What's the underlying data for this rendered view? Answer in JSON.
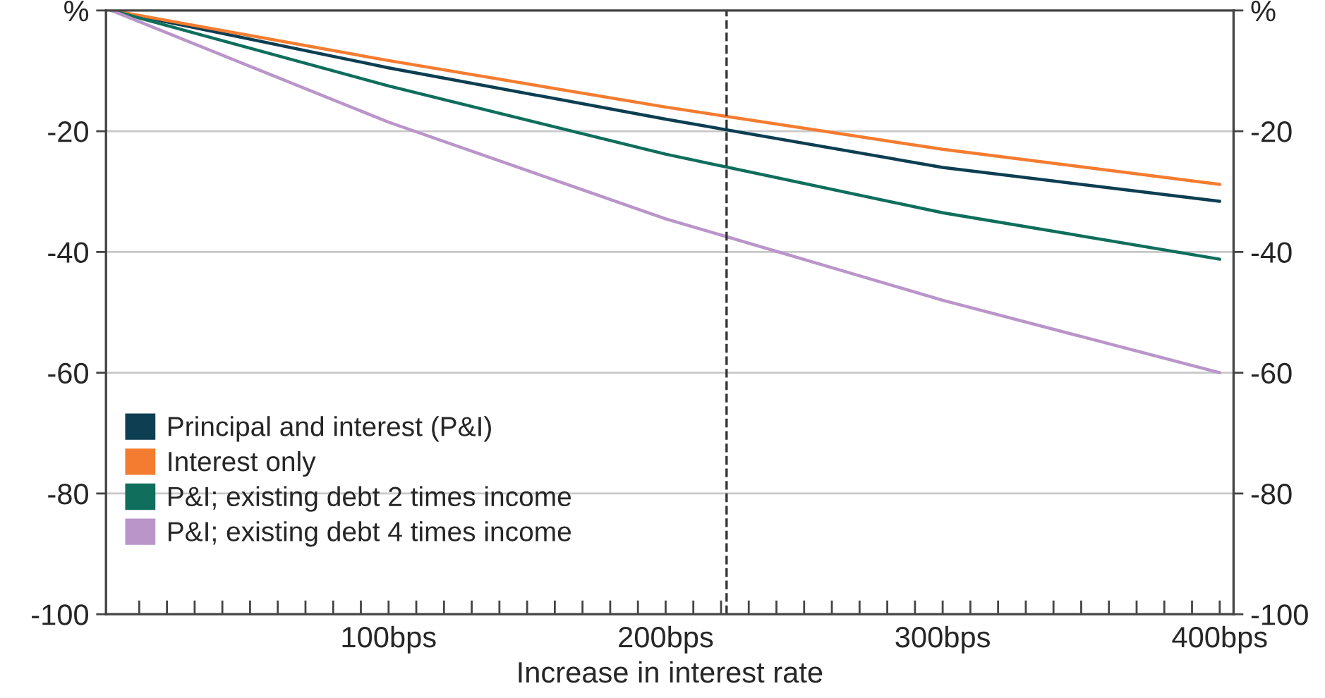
{
  "chart_data": {
    "type": "line",
    "xlabel": "Increase in interest rate",
    "x": [
      0,
      100,
      200,
      300,
      400
    ],
    "series": [
      {
        "name": "Principal and interest (P&I)",
        "color": "#0d3e52",
        "values": [
          0,
          -9.5,
          -18,
          -26,
          -31.6
        ]
      },
      {
        "name": "Interest only",
        "color": "#f47c30",
        "values": [
          0,
          -8.3,
          -16,
          -23,
          -28.8
        ]
      },
      {
        "name": "P&I; existing debt 2 times income",
        "color": "#0f6e5c",
        "values": [
          0,
          -12.5,
          -23.8,
          -33.5,
          -41.2
        ]
      },
      {
        "name": "P&I; existing debt 4 times income",
        "color": "#b995c9",
        "values": [
          0,
          -18.5,
          -34.5,
          -48,
          -60
        ]
      }
    ],
    "xlim": [
      -2,
      405
    ],
    "xticks": [
      {
        "value": 10,
        "label": null
      },
      {
        "value": 20,
        "label": null
      },
      {
        "value": 30,
        "label": null
      },
      {
        "value": 40,
        "label": null
      },
      {
        "value": 50,
        "label": null
      },
      {
        "value": 60,
        "label": null
      },
      {
        "value": 70,
        "label": null
      },
      {
        "value": 80,
        "label": null
      },
      {
        "value": 90,
        "label": null
      },
      {
        "value": 100,
        "label": "100bps"
      },
      {
        "value": 110,
        "label": null
      },
      {
        "value": 120,
        "label": null
      },
      {
        "value": 130,
        "label": null
      },
      {
        "value": 140,
        "label": null
      },
      {
        "value": 150,
        "label": null
      },
      {
        "value": 160,
        "label": null
      },
      {
        "value": 170,
        "label": null
      },
      {
        "value": 180,
        "label": null
      },
      {
        "value": 190,
        "label": null
      },
      {
        "value": 200,
        "label": "200bps"
      },
      {
        "value": 210,
        "label": null
      },
      {
        "value": 220,
        "label": null
      },
      {
        "value": 230,
        "label": null
      },
      {
        "value": 240,
        "label": null
      },
      {
        "value": 250,
        "label": null
      },
      {
        "value": 260,
        "label": null
      },
      {
        "value": 270,
        "label": null
      },
      {
        "value": 280,
        "label": null
      },
      {
        "value": 290,
        "label": null
      },
      {
        "value": 300,
        "label": "300bps"
      },
      {
        "value": 310,
        "label": null
      },
      {
        "value": 320,
        "label": null
      },
      {
        "value": 330,
        "label": null
      },
      {
        "value": 340,
        "label": null
      },
      {
        "value": 350,
        "label": null
      },
      {
        "value": 360,
        "label": null
      },
      {
        "value": 370,
        "label": null
      },
      {
        "value": 380,
        "label": null
      },
      {
        "value": 390,
        "label": null
      },
      {
        "value": 400,
        "label": "400bps"
      }
    ],
    "ylim": [
      -100,
      0
    ],
    "yticks": [
      {
        "value": 0,
        "label": "%"
      },
      -20,
      -40,
      -60,
      -80,
      -100
    ],
    "y2lim": [
      -100,
      0
    ],
    "y2ticks": [
      {
        "value": 0,
        "label": "%"
      },
      -20,
      -40,
      -60,
      -80,
      -100
    ],
    "ref_lines": [
      {
        "axis": "x",
        "value": 222,
        "color": "#333333",
        "line_style": "dashed"
      }
    ],
    "grid": "y",
    "legend": "bottom left",
    "marker": "none",
    "line_style": "solid"
  }
}
